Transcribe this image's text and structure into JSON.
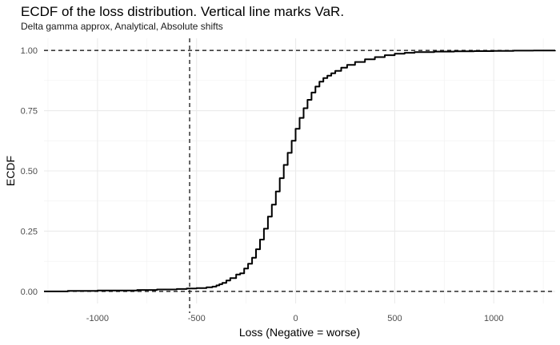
{
  "chart_data": {
    "type": "line",
    "title": "ECDF of the loss distribution. Vertical line marks VaR.",
    "subtitle": "Delta gamma approx, Analytical, Absolute shifts",
    "xlabel": "Loss (Negative = worse)",
    "ylabel": "ECDF",
    "xlim": [
      -1270,
      1310
    ],
    "ylim": [
      -0.05,
      1.05
    ],
    "x_ticks": [
      -1000,
      -500,
      0,
      500,
      1000
    ],
    "x_tick_labels": [
      "-1000",
      "-500",
      "0",
      "500",
      "1000"
    ],
    "y_ticks": [
      0,
      0.25,
      0.5,
      0.75,
      1
    ],
    "y_tick_labels": [
      "0.00",
      "0.25",
      "0.50",
      "0.75",
      "1.00"
    ],
    "grid": true,
    "series": [
      {
        "x": [
          -1270,
          -1150,
          -1000,
          -800,
          -700,
          -600,
          -550,
          -500,
          -450,
          -420,
          -400,
          -385,
          -370,
          -350,
          -330,
          -300,
          -280,
          -260,
          -240,
          -220,
          -200,
          -180,
          -160,
          -140,
          -120,
          -100,
          -80,
          -60,
          -40,
          -20,
          0,
          20,
          40,
          60,
          80,
          100,
          120,
          140,
          160,
          180,
          200,
          230,
          260,
          300,
          350,
          400,
          450,
          500,
          550,
          600,
          700,
          800,
          900,
          1000,
          1100,
          1200,
          1310
        ],
        "y": [
          0,
          0.002,
          0.004,
          0.006,
          0.008,
          0.01,
          0.012,
          0.014,
          0.017,
          0.02,
          0.025,
          0.03,
          0.035,
          0.045,
          0.055,
          0.07,
          0.075,
          0.095,
          0.115,
          0.14,
          0.175,
          0.215,
          0.26,
          0.31,
          0.36,
          0.415,
          0.47,
          0.525,
          0.575,
          0.625,
          0.675,
          0.72,
          0.76,
          0.795,
          0.825,
          0.85,
          0.87,
          0.885,
          0.895,
          0.905,
          0.915,
          0.928,
          0.94,
          0.952,
          0.963,
          0.972,
          0.98,
          0.986,
          0.99,
          0.993,
          0.995,
          0.996,
          0.997,
          0.998,
          0.999,
          0.9995,
          1
        ]
      }
    ],
    "reference_lines": {
      "vertical_x": -535,
      "horizontal_y": [
        0,
        1
      ]
    }
  }
}
